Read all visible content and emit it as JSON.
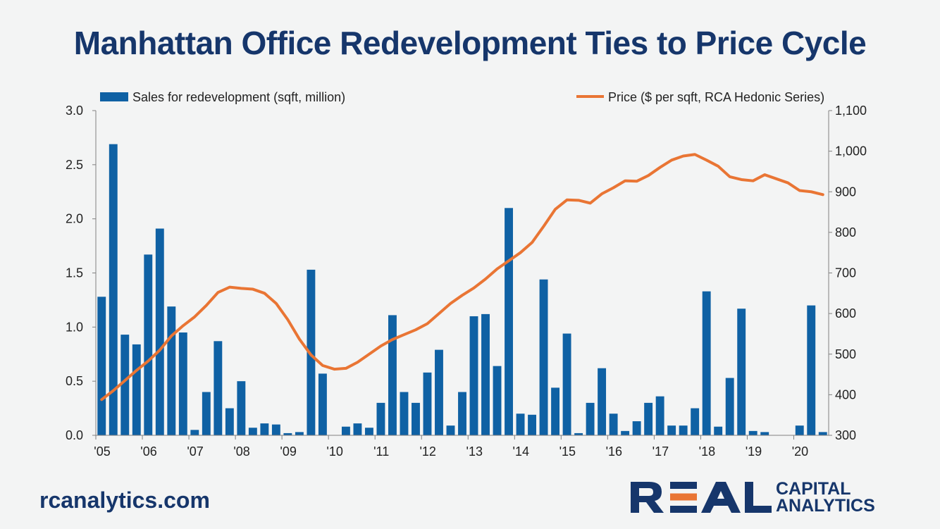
{
  "title": "Manhattan Office Redevelopment Ties to Price Cycle",
  "footer": {
    "url": "rcanalytics.com",
    "logo_main": "REAL",
    "logo_sub1": "CAPITAL",
    "logo_sub2": "ANALYTICS"
  },
  "colors": {
    "bar": "#0f61a4",
    "line": "#e97534",
    "title": "#16366b",
    "logo_accent": "#e97534"
  },
  "chart_data": {
    "type": "bar",
    "legend_position": "top",
    "grid": false,
    "x_tick_labels": [
      "'05",
      "'06",
      "'07",
      "'08",
      "'09",
      "'10",
      "'11",
      "'12",
      "'13",
      "'14",
      "'15",
      "'16",
      "'17",
      "'18",
      "'19",
      "'20"
    ],
    "left_axis": {
      "ylim": [
        0,
        3.0
      ],
      "ticks": [
        "0.0",
        "0.5",
        "1.0",
        "1.5",
        "2.0",
        "2.5",
        "3.0"
      ]
    },
    "right_axis": {
      "ylim": [
        300,
        1100
      ],
      "ticks": [
        "300",
        "400",
        "500",
        "600",
        "700",
        "800",
        "900",
        "1,000",
        "1,100"
      ]
    },
    "series": [
      {
        "name": "Sales for redevelopment (sqft, million)",
        "type": "bar",
        "axis": "left",
        "values": [
          1.28,
          2.69,
          0.93,
          0.84,
          1.67,
          1.91,
          1.19,
          0.95,
          0.05,
          0.4,
          0.87,
          0.25,
          0.5,
          0.07,
          0.11,
          0.1,
          0.02,
          0.03,
          1.53,
          0.57,
          0,
          0.08,
          0.11,
          0.07,
          0.3,
          1.11,
          0.4,
          0.3,
          0.58,
          0.79,
          0.09,
          0.4,
          1.1,
          1.12,
          0.64,
          2.1,
          0.2,
          0.19,
          1.44,
          0.44,
          0.94,
          0.02,
          0.3,
          0.62,
          0.2,
          0.04,
          0.13,
          0.3,
          0.36,
          0.09,
          0.09,
          0.25,
          1.33,
          0.08,
          0.53,
          1.17,
          0.04,
          0.03,
          0,
          0,
          0.09,
          1.2,
          0.03
        ]
      },
      {
        "name": "Price ($ per sqft, RCA Hedonic Series)",
        "type": "line",
        "axis": "right",
        "values": [
          388,
          410,
          435,
          460,
          483,
          510,
          545,
          570,
          592,
          620,
          652,
          665,
          662,
          660,
          650,
          625,
          585,
          537,
          498,
          472,
          463,
          465,
          480,
          500,
          520,
          536,
          548,
          560,
          575,
          600,
          625,
          645,
          663,
          685,
          710,
          730,
          750,
          775,
          815,
          857,
          880,
          879,
          872,
          895,
          910,
          927,
          926,
          940,
          960,
          978,
          988,
          992,
          978,
          963,
          937,
          930,
          927,
          942,
          932,
          922,
          903,
          900,
          893
        ]
      }
    ]
  }
}
